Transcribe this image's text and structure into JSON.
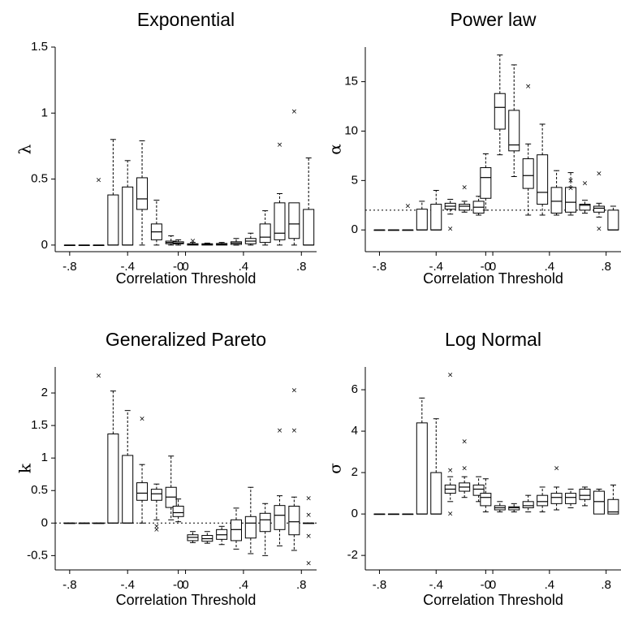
{
  "chart_data": [
    {
      "type": "box",
      "title": "Exponential",
      "xlabel": "Correlation Threshold",
      "ylabel": "λ",
      "ylim": [
        -0.05,
        1.5
      ],
      "yticks": [
        0,
        0.5,
        1,
        1.5
      ],
      "ytick_labels": [
        "0",
        "0.5",
        "1",
        "1.5"
      ],
      "xticks": [
        -0.8,
        -0.4,
        -0.05,
        0,
        0.4,
        0.8
      ],
      "xtick_labels": [
        "-.8",
        "-.4",
        "-0",
        "0",
        ".4",
        ".8"
      ],
      "reference_line": null,
      "boxes": [
        {
          "x": -0.8,
          "q1": 0,
          "med": 0,
          "q3": 0,
          "lo": 0,
          "hi": 0,
          "out": []
        },
        {
          "x": -0.7,
          "q1": 0,
          "med": 0,
          "q3": 0,
          "lo": 0,
          "hi": 0,
          "out": []
        },
        {
          "x": -0.6,
          "q1": 0,
          "med": 0,
          "q3": 0,
          "lo": 0,
          "hi": 0,
          "out": [
            0.49
          ]
        },
        {
          "x": -0.5,
          "q1": 0,
          "med": 0,
          "q3": 0.38,
          "lo": 0,
          "hi": 0.8,
          "out": []
        },
        {
          "x": -0.4,
          "q1": 0,
          "med": 0,
          "q3": 0.44,
          "lo": 0,
          "hi": 0.64,
          "out": []
        },
        {
          "x": -0.3,
          "q1": 0.27,
          "med": 0.35,
          "q3": 0.51,
          "lo": 0,
          "hi": 0.79,
          "out": []
        },
        {
          "x": -0.2,
          "q1": 0.04,
          "med": 0.1,
          "q3": 0.16,
          "lo": 0,
          "hi": 0.34,
          "out": []
        },
        {
          "x": -0.1,
          "q1": 0.01,
          "med": 0.02,
          "q3": 0.03,
          "lo": 0,
          "hi": 0.07,
          "out": []
        },
        {
          "x": -0.05,
          "q1": 0.01,
          "med": 0.015,
          "q3": 0.025,
          "lo": 0,
          "hi": 0.04,
          "out": []
        },
        {
          "x": 0.05,
          "q1": 0,
          "med": 0.005,
          "q3": 0.01,
          "lo": 0,
          "hi": 0.02,
          "out": [
            0.03
          ]
        },
        {
          "x": 0.15,
          "q1": 0,
          "med": 0.005,
          "q3": 0.01,
          "lo": 0,
          "hi": 0.015,
          "out": []
        },
        {
          "x": 0.25,
          "q1": 0,
          "med": 0.005,
          "q3": 0.012,
          "lo": 0,
          "hi": 0.02,
          "out": []
        },
        {
          "x": 0.35,
          "q1": 0.005,
          "med": 0.015,
          "q3": 0.025,
          "lo": 0,
          "hi": 0.05,
          "out": []
        },
        {
          "x": 0.45,
          "q1": 0.01,
          "med": 0.03,
          "q3": 0.05,
          "lo": 0,
          "hi": 0.09,
          "out": []
        },
        {
          "x": 0.55,
          "q1": 0.02,
          "med": 0.06,
          "q3": 0.16,
          "lo": 0,
          "hi": 0.26,
          "out": []
        },
        {
          "x": 0.65,
          "q1": 0.04,
          "med": 0.09,
          "q3": 0.32,
          "lo": 0,
          "hi": 0.39,
          "out": [
            0.76
          ]
        },
        {
          "x": 0.75,
          "q1": 0.05,
          "med": 0.16,
          "q3": 0.32,
          "lo": 0,
          "hi": 0.32,
          "out": [
            1.01
          ]
        },
        {
          "x": 0.85,
          "q1": 0,
          "med": 0,
          "q3": 0.27,
          "lo": 0,
          "hi": 0.66,
          "out": []
        }
      ]
    },
    {
      "type": "box",
      "title": "Power law",
      "xlabel": "Correlation Threshold",
      "ylabel": "α",
      "ylim": [
        -2.2,
        18.5
      ],
      "yticks": [
        0,
        5,
        10,
        15
      ],
      "ytick_labels": [
        "0",
        "5",
        "10",
        "15"
      ],
      "xticks": [
        -0.8,
        -0.4,
        -0.05,
        0,
        0.4,
        0.8
      ],
      "xtick_labels": [
        "-.8",
        "-.4",
        "-0",
        "0",
        ".4",
        ".8"
      ],
      "reference_line": 2,
      "boxes": [
        {
          "x": -0.8,
          "q1": 0,
          "med": 0,
          "q3": 0,
          "lo": 0,
          "hi": 0,
          "out": []
        },
        {
          "x": -0.7,
          "q1": 0,
          "med": 0,
          "q3": 0,
          "lo": 0,
          "hi": 0,
          "out": []
        },
        {
          "x": -0.6,
          "q1": 0,
          "med": 0,
          "q3": 0,
          "lo": 0,
          "hi": 0,
          "out": [
            2.4
          ]
        },
        {
          "x": -0.5,
          "q1": 0,
          "med": 0,
          "q3": 2.1,
          "lo": 0,
          "hi": 2.9,
          "out": []
        },
        {
          "x": -0.4,
          "q1": 0,
          "med": 0,
          "q3": 2.6,
          "lo": 0,
          "hi": 4.0,
          "out": []
        },
        {
          "x": -0.3,
          "q1": 2.1,
          "med": 2.4,
          "q3": 2.7,
          "lo": 1.6,
          "hi": 3.1,
          "out": [
            0.1
          ]
        },
        {
          "x": -0.2,
          "q1": 2.0,
          "med": 2.4,
          "q3": 2.6,
          "lo": 1.8,
          "hi": 2.9,
          "out": [
            4.3
          ]
        },
        {
          "x": -0.1,
          "q1": 1.7,
          "med": 2.3,
          "q3": 2.9,
          "lo": 1.5,
          "hi": 3.4,
          "out": []
        },
        {
          "x": -0.05,
          "q1": 3.2,
          "med": 5.3,
          "q3": 6.3,
          "lo": 2.0,
          "hi": 7.7,
          "out": []
        },
        {
          "x": 0.05,
          "q1": 10.2,
          "med": 12.4,
          "q3": 13.8,
          "lo": 7.6,
          "hi": 17.7,
          "out": []
        },
        {
          "x": 0.15,
          "q1": 8.0,
          "med": 8.6,
          "q3": 12.1,
          "lo": 5.4,
          "hi": 16.7,
          "out": []
        },
        {
          "x": 0.25,
          "q1": 4.2,
          "med": 5.5,
          "q3": 7.2,
          "lo": 1.5,
          "hi": 8.7,
          "out": [
            14.5
          ]
        },
        {
          "x": 0.35,
          "q1": 2.6,
          "med": 3.8,
          "q3": 7.6,
          "lo": 1.5,
          "hi": 10.7,
          "out": []
        },
        {
          "x": 0.45,
          "q1": 1.7,
          "med": 2.9,
          "q3": 4.3,
          "lo": 1.5,
          "hi": 6.0,
          "out": []
        },
        {
          "x": 0.55,
          "q1": 1.8,
          "med": 2.8,
          "q3": 4.3,
          "lo": 1.5,
          "hi": 5.8,
          "out": [
            4.2,
            5.0
          ]
        },
        {
          "x": 0.65,
          "q1": 2.0,
          "med": 2.5,
          "q3": 2.6,
          "lo": 1.7,
          "hi": 3.0,
          "out": [
            4.7
          ]
        },
        {
          "x": 0.75,
          "q1": 1.8,
          "med": 2.2,
          "q3": 2.4,
          "lo": 1.3,
          "hi": 2.7,
          "out": [
            5.7,
            0.1
          ]
        },
        {
          "x": 0.85,
          "q1": 0,
          "med": 0,
          "q3": 2.0,
          "lo": 0,
          "hi": 2.4,
          "out": []
        }
      ]
    },
    {
      "type": "box",
      "title": "Generalized Pareto",
      "xlabel": "Correlation Threshold",
      "ylabel": "k",
      "ylim": [
        -0.72,
        2.4
      ],
      "yticks": [
        -0.5,
        0,
        0.5,
        1,
        1.5,
        2
      ],
      "ytick_labels": [
        "-0.5",
        "0",
        "0.5",
        "1",
        "1.5",
        "2"
      ],
      "xticks": [
        -0.8,
        -0.4,
        -0.05,
        0,
        0.4,
        0.8
      ],
      "xtick_labels": [
        "-.8",
        "-.4",
        "-0",
        "0",
        ".4",
        ".8"
      ],
      "reference_line": 0,
      "boxes": [
        {
          "x": -0.8,
          "q1": 0,
          "med": 0,
          "q3": 0,
          "lo": 0,
          "hi": 0,
          "out": []
        },
        {
          "x": -0.7,
          "q1": 0,
          "med": 0,
          "q3": 0,
          "lo": 0,
          "hi": 0,
          "out": []
        },
        {
          "x": -0.6,
          "q1": 0,
          "med": 0,
          "q3": 0,
          "lo": 0,
          "hi": 0,
          "out": [
            2.26
          ]
        },
        {
          "x": -0.5,
          "q1": 0,
          "med": 0,
          "q3": 1.37,
          "lo": 0,
          "hi": 2.03,
          "out": []
        },
        {
          "x": -0.4,
          "q1": 0,
          "med": 0,
          "q3": 1.04,
          "lo": 0,
          "hi": 1.73,
          "out": []
        },
        {
          "x": -0.3,
          "q1": 0.35,
          "med": 0.46,
          "q3": 0.62,
          "lo": 0,
          "hi": 0.9,
          "out": [
            1.6
          ]
        },
        {
          "x": -0.2,
          "q1": 0.35,
          "med": 0.45,
          "q3": 0.52,
          "lo": 0.05,
          "hi": 0.6,
          "out": [
            -0.05,
            -0.1
          ]
        },
        {
          "x": -0.1,
          "q1": 0.24,
          "med": 0.4,
          "q3": 0.55,
          "lo": 0.05,
          "hi": 1.03,
          "out": []
        },
        {
          "x": -0.05,
          "q1": 0.1,
          "med": 0.16,
          "q3": 0.26,
          "lo": 0.02,
          "hi": 0.37,
          "out": []
        },
        {
          "x": 0.05,
          "q1": -0.27,
          "med": -0.22,
          "q3": -0.18,
          "lo": -0.3,
          "hi": -0.13,
          "out": []
        },
        {
          "x": 0.15,
          "q1": -0.28,
          "med": -0.24,
          "q3": -0.19,
          "lo": -0.31,
          "hi": -0.13,
          "out": []
        },
        {
          "x": 0.25,
          "q1": -0.25,
          "med": -0.18,
          "q3": -0.1,
          "lo": -0.33,
          "hi": -0.05,
          "out": []
        },
        {
          "x": 0.35,
          "q1": -0.27,
          "med": -0.1,
          "q3": 0.05,
          "lo": -0.4,
          "hi": 0.23,
          "out": []
        },
        {
          "x": 0.45,
          "q1": -0.23,
          "med": 0,
          "q3": 0.1,
          "lo": -0.47,
          "hi": 0.55,
          "out": []
        },
        {
          "x": 0.55,
          "q1": -0.13,
          "med": 0.05,
          "q3": 0.15,
          "lo": -0.5,
          "hi": 0.3,
          "out": []
        },
        {
          "x": 0.65,
          "q1": -0.1,
          "med": 0.12,
          "q3": 0.27,
          "lo": -0.35,
          "hi": 0.42,
          "out": [
            1.42
          ]
        },
        {
          "x": 0.75,
          "q1": -0.18,
          "med": 0.02,
          "q3": 0.26,
          "lo": -0.42,
          "hi": 0.4,
          "out": [
            2.04,
            1.42
          ]
        },
        {
          "x": 0.85,
          "q1": 0,
          "med": 0,
          "q3": 0,
          "lo": 0,
          "hi": 0,
          "out": [
            0.38,
            0.12,
            -0.2,
            -0.62
          ]
        }
      ]
    },
    {
      "type": "box",
      "title": "Log Normal",
      "xlabel": "Correlation Threshold",
      "ylabel": "σ",
      "ylim": [
        -2.7,
        7.1
      ],
      "yticks": [
        -2,
        0,
        2,
        4,
        6
      ],
      "ytick_labels": [
        "-2",
        "0",
        "2",
        "4",
        "6"
      ],
      "xticks": [
        -0.8,
        -0.4,
        -0.05,
        0,
        0.4,
        0.8
      ],
      "xtick_labels": [
        "-.8",
        "-.4",
        "-0",
        "0",
        ".4",
        ".8"
      ],
      "reference_line": null,
      "boxes": [
        {
          "x": -0.8,
          "q1": 0,
          "med": 0,
          "q3": 0,
          "lo": 0,
          "hi": 0,
          "out": []
        },
        {
          "x": -0.7,
          "q1": 0,
          "med": 0,
          "q3": 0,
          "lo": 0,
          "hi": 0,
          "out": []
        },
        {
          "x": -0.6,
          "q1": 0,
          "med": 0,
          "q3": 0,
          "lo": 0,
          "hi": 0,
          "out": []
        },
        {
          "x": -0.5,
          "q1": 0,
          "med": 0,
          "q3": 4.4,
          "lo": 0,
          "hi": 5.6,
          "out": []
        },
        {
          "x": -0.4,
          "q1": 0,
          "med": 0,
          "q3": 2.0,
          "lo": 0,
          "hi": 4.6,
          "out": []
        },
        {
          "x": -0.3,
          "q1": 1.0,
          "med": 1.2,
          "q3": 1.4,
          "lo": 0.6,
          "hi": 1.8,
          "out": [
            6.7,
            2.1,
            0.0
          ]
        },
        {
          "x": -0.2,
          "q1": 1.1,
          "med": 1.3,
          "q3": 1.5,
          "lo": 0.8,
          "hi": 1.8,
          "out": [
            3.5,
            2.2
          ]
        },
        {
          "x": -0.1,
          "q1": 0.9,
          "med": 1.2,
          "q3": 1.4,
          "lo": 0.6,
          "hi": 1.8,
          "out": []
        },
        {
          "x": -0.05,
          "q1": 0.4,
          "med": 0.8,
          "q3": 1.0,
          "lo": 0.1,
          "hi": 1.7,
          "out": []
        },
        {
          "x": 0.05,
          "q1": 0.2,
          "med": 0.3,
          "q3": 0.4,
          "lo": 0.1,
          "hi": 0.6,
          "out": []
        },
        {
          "x": 0.15,
          "q1": 0.2,
          "med": 0.3,
          "q3": 0.35,
          "lo": 0.1,
          "hi": 0.5,
          "out": []
        },
        {
          "x": 0.25,
          "q1": 0.3,
          "med": 0.4,
          "q3": 0.6,
          "lo": 0.1,
          "hi": 0.9,
          "out": []
        },
        {
          "x": 0.35,
          "q1": 0.4,
          "med": 0.6,
          "q3": 0.9,
          "lo": 0.1,
          "hi": 1.3,
          "out": []
        },
        {
          "x": 0.45,
          "q1": 0.5,
          "med": 0.8,
          "q3": 1.0,
          "lo": 0.2,
          "hi": 1.3,
          "out": [
            2.2
          ]
        },
        {
          "x": 0.55,
          "q1": 0.5,
          "med": 0.8,
          "q3": 1.0,
          "lo": 0.3,
          "hi": 1.2,
          "out": []
        },
        {
          "x": 0.65,
          "q1": 0.7,
          "med": 0.9,
          "q3": 1.2,
          "lo": 0.4,
          "hi": 1.3,
          "out": []
        },
        {
          "x": 0.75,
          "q1": 0,
          "med": 0.6,
          "q3": 1.1,
          "lo": 0,
          "hi": 1.2,
          "out": []
        },
        {
          "x": 0.85,
          "q1": 0,
          "med": 0.1,
          "q3": 0.7,
          "lo": 0,
          "hi": 1.4,
          "out": []
        }
      ]
    }
  ]
}
